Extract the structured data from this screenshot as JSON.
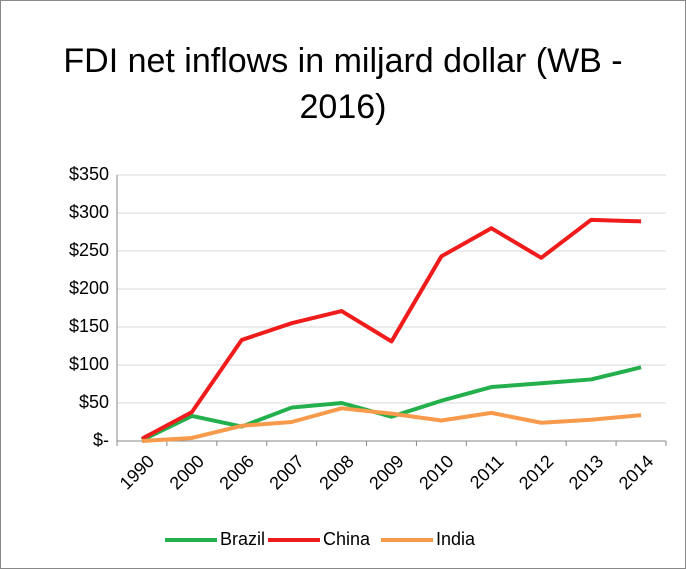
{
  "chart_data": {
    "type": "line",
    "title": "FDI net inflows in miljard dollar (WB - 2016)",
    "categories": [
      "1990",
      "2000",
      "2006",
      "2007",
      "2008",
      "2009",
      "2010",
      "2011",
      "2012",
      "2013",
      "2014"
    ],
    "series": [
      {
        "name": "Brazil",
        "color": "#23b04c",
        "values": [
          1,
          33,
          19,
          44,
          50,
          32,
          53,
          71,
          76,
          81,
          97
        ]
      },
      {
        "name": "China",
        "color": "#f01c1c",
        "values": [
          3,
          38,
          133,
          155,
          171,
          131,
          243,
          280,
          241,
          291,
          289
        ]
      },
      {
        "name": "India",
        "color": "#f79a4c",
        "values": [
          0,
          4,
          20,
          25,
          43,
          36,
          27,
          37,
          24,
          28,
          34
        ]
      }
    ],
    "ylim": [
      0,
      350
    ],
    "yticks": [
      {
        "value": 0,
        "label": "$-"
      },
      {
        "value": 50,
        "label": "$50"
      },
      {
        "value": 100,
        "label": "$100"
      },
      {
        "value": 150,
        "label": "$150"
      },
      {
        "value": 200,
        "label": "$200"
      },
      {
        "value": 250,
        "label": "$250"
      },
      {
        "value": 300,
        "label": "$300"
      },
      {
        "value": 350,
        "label": "$350"
      }
    ],
    "grid": true,
    "legend": "bottom"
  }
}
